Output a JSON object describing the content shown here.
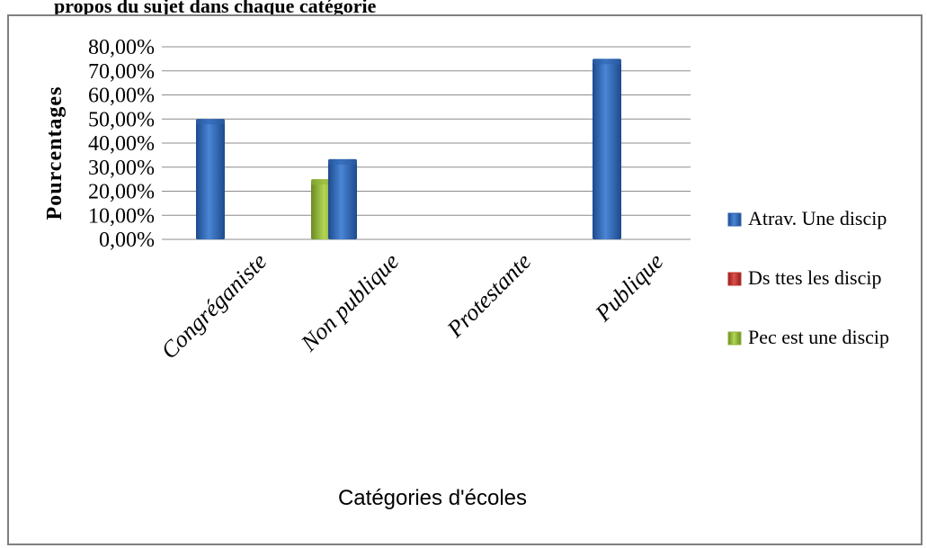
{
  "title_fragment": "propos du sujet dans chaque catégorie",
  "chart_data": {
    "type": "bar",
    "categories": [
      "Congréganiste",
      "Non publique",
      "Protestante",
      "Publique"
    ],
    "series": [
      {
        "name": "Atrav. Une discip",
        "color": "#2f62ad",
        "values": [
          50,
          33.3,
          0,
          75
        ]
      },
      {
        "name": "Ds ttes les discip",
        "color": "#c0302c",
        "values": [
          0,
          0,
          0,
          0
        ]
      },
      {
        "name": "Pec est une discip",
        "color": "#8fb43a",
        "values": [
          25,
          0,
          0,
          0
        ]
      }
    ],
    "ylabel": "Pourcentages",
    "xlabel": "Catégories d'écoles",
    "ylim": [
      0,
      80
    ],
    "yticks": [
      "0,00%",
      "10,00%",
      "20,00%",
      "30,00%",
      "40,00%",
      "50,00%",
      "60,00%",
      "70,00%",
      "80,00%"
    ],
    "grid": true,
    "legend": "right"
  }
}
